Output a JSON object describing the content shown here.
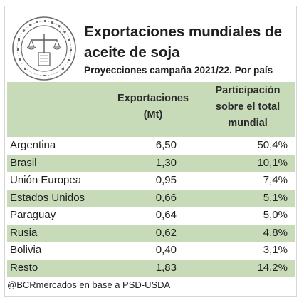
{
  "header": {
    "title": "Exportaciones mundiales de aceite de soja",
    "subtitle": "Proyecciones campaña 2021/22. Por país",
    "logo_icon": "bolsa-de-comercio-seal-icon"
  },
  "table": {
    "col_exports": "Exportaciones (Mt)",
    "col_share": "Participación sobre el total mundial",
    "rows": [
      {
        "country": "Argentina",
        "exports": "6,50",
        "share": "50,4%"
      },
      {
        "country": "Brasil",
        "exports": "1,30",
        "share": "10,1%"
      },
      {
        "country": "Unión Europea",
        "exports": "0,95",
        "share": "7,4%"
      },
      {
        "country": "Estados Unidos",
        "exports": "0,66",
        "share": "5,1%"
      },
      {
        "country": "Paraguay",
        "exports": "0,64",
        "share": "5,0%"
      },
      {
        "country": "Rusia",
        "exports": "0,62",
        "share": "4,8%"
      },
      {
        "country": "Bolivia",
        "exports": "0,40",
        "share": "3,1%"
      },
      {
        "country": "Resto",
        "exports": "1,83",
        "share": "14,2%"
      }
    ]
  },
  "footer": {
    "source": "@BCRmercados en base a PSD-USDA"
  },
  "colors": {
    "band": "#c8dbb8",
    "text": "#1b1b1b"
  },
  "chart_data": {
    "type": "table",
    "title": "Exportaciones mundiales de aceite de soja",
    "subtitle": "Proyecciones campaña 2021/22. Por país",
    "columns": [
      "",
      "Exportaciones (Mt)",
      "Participación sobre el total mundial"
    ],
    "categories": [
      "Argentina",
      "Brasil",
      "Unión Europea",
      "Estados Unidos",
      "Paraguay",
      "Rusia",
      "Bolivia",
      "Resto"
    ],
    "series": [
      {
        "name": "Exportaciones (Mt)",
        "values": [
          6.5,
          1.3,
          0.95,
          0.66,
          0.64,
          0.62,
          0.4,
          1.83
        ]
      },
      {
        "name": "Participación sobre el total mundial",
        "values": [
          50.4,
          10.1,
          7.4,
          5.1,
          5.0,
          4.8,
          3.1,
          14.2
        ]
      }
    ]
  }
}
